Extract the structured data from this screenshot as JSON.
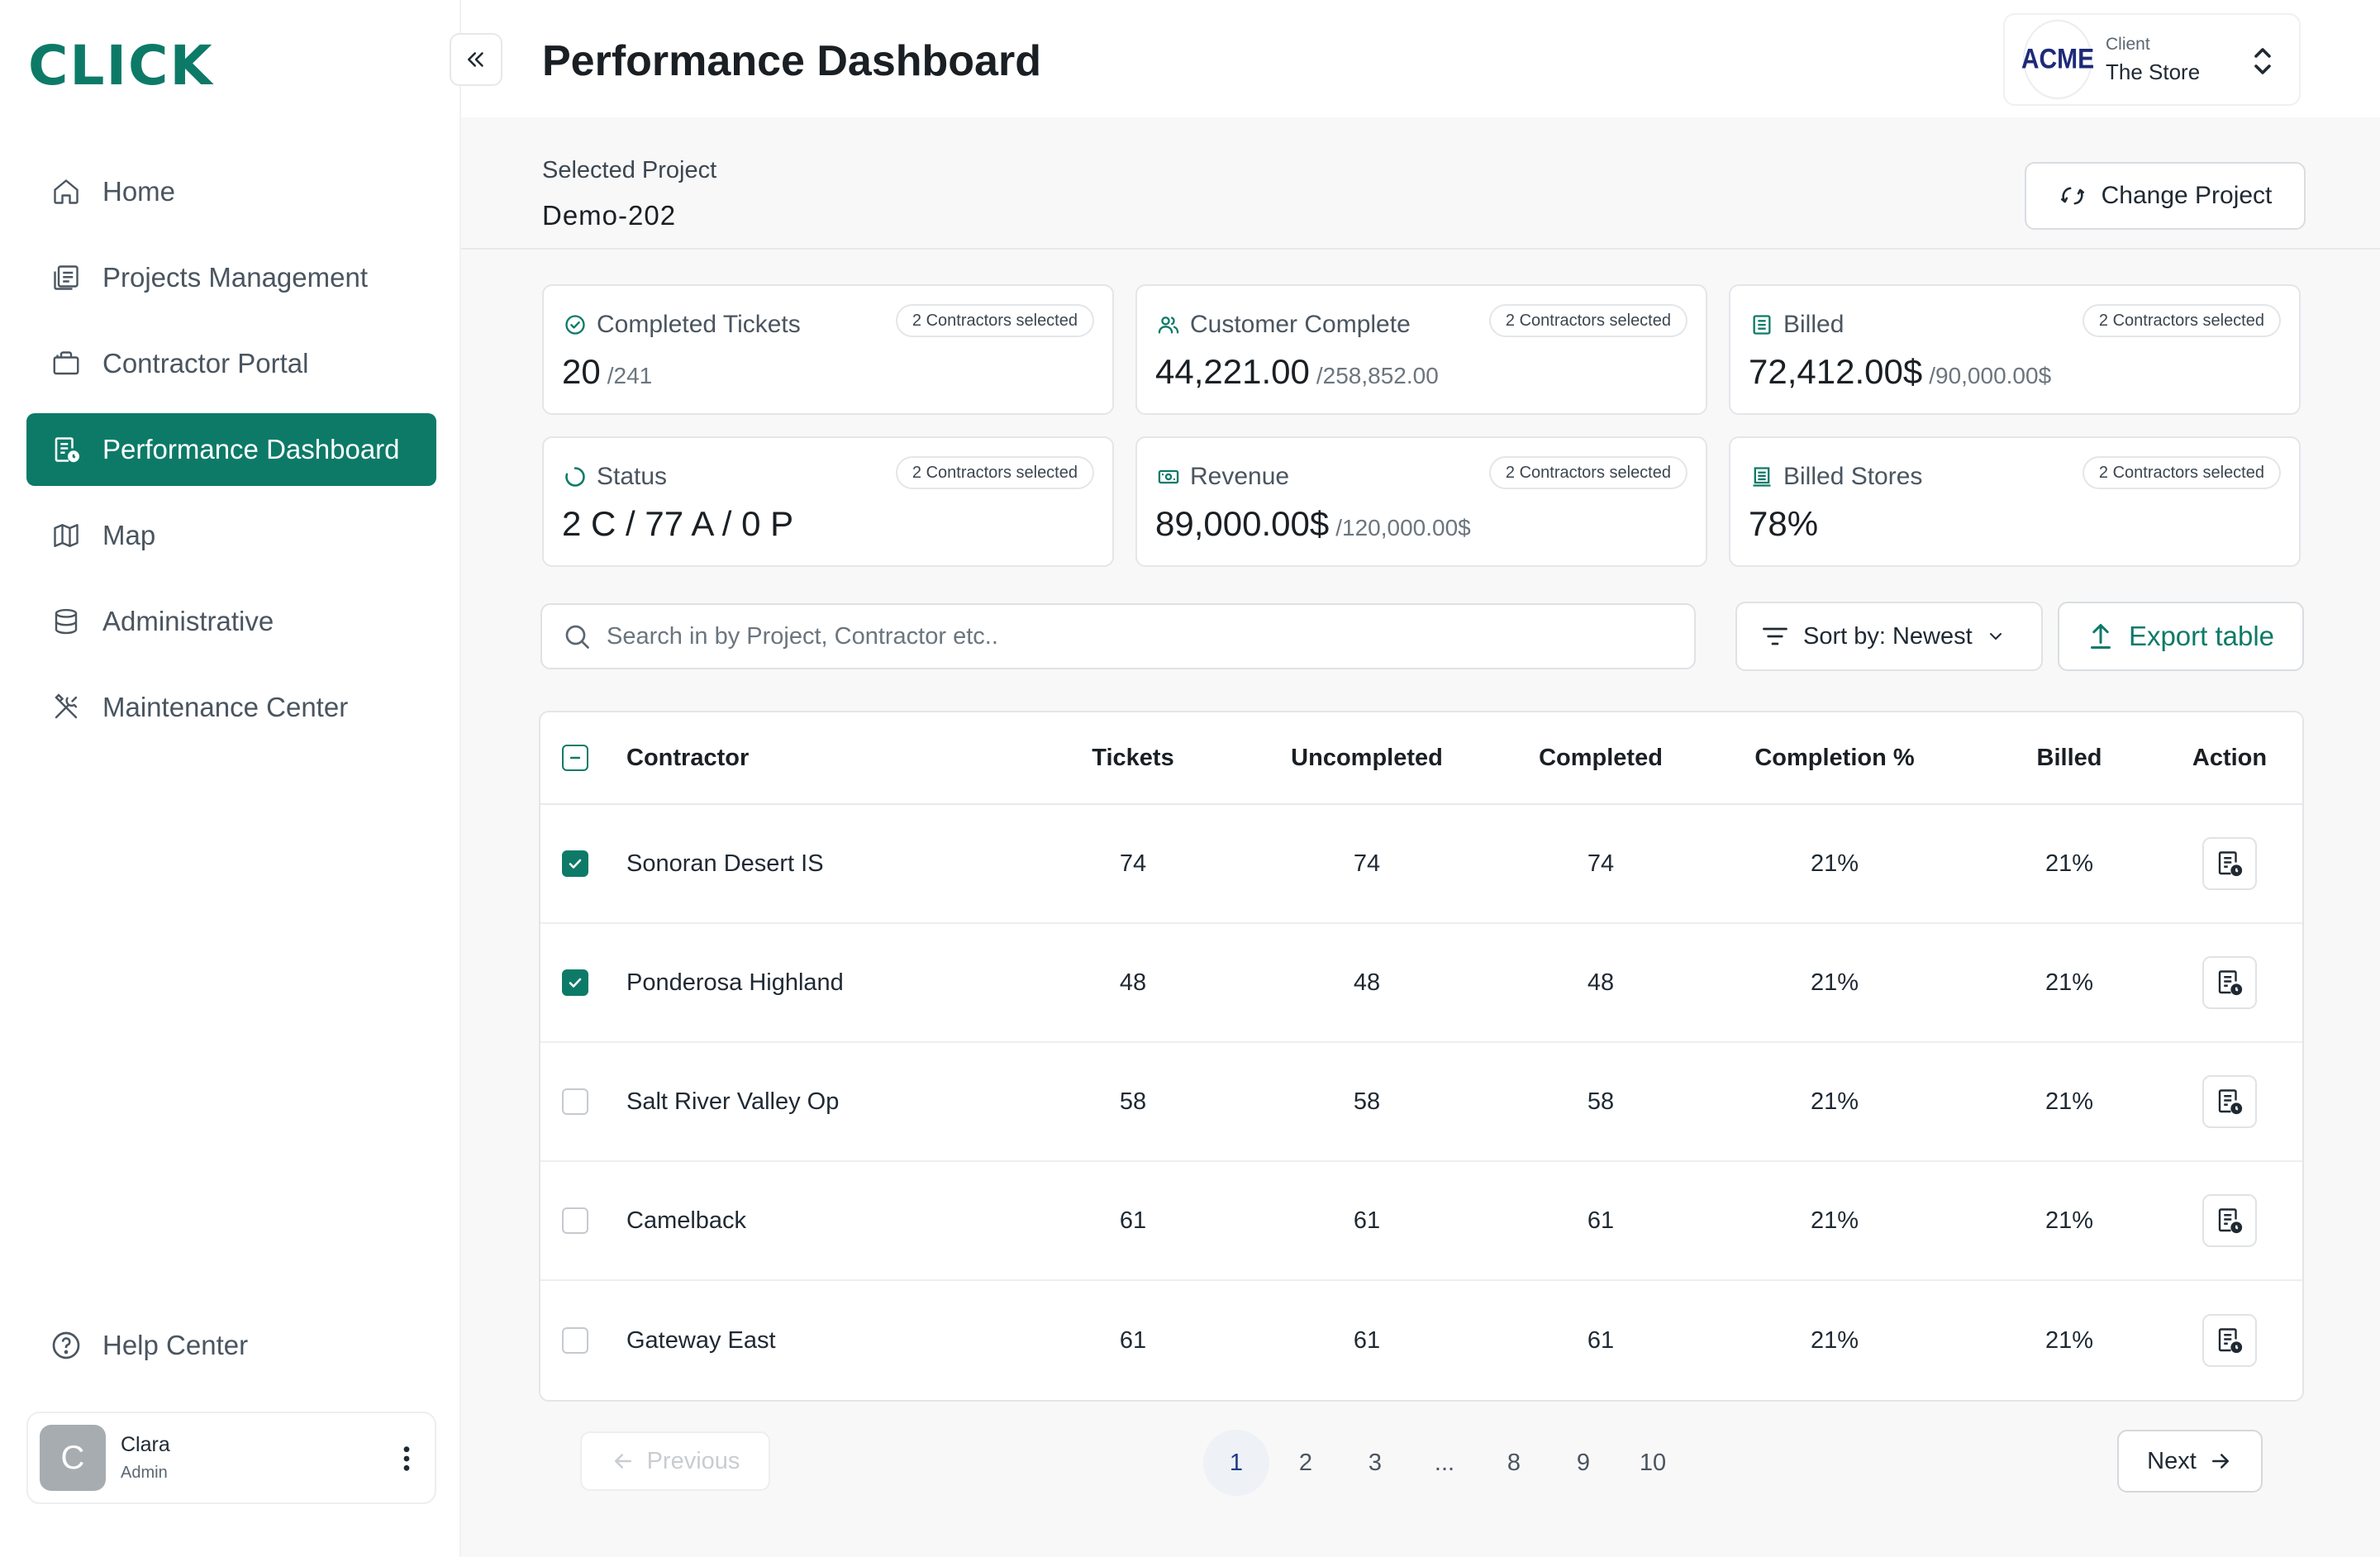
{
  "app": {
    "logo": "CLICK"
  },
  "sidebar": {
    "items": [
      {
        "label": "Home",
        "icon": "home-icon"
      },
      {
        "label": "Projects Management",
        "icon": "projects-icon"
      },
      {
        "label": "Contractor Portal",
        "icon": "briefcase-icon"
      },
      {
        "label": "Performance Dashboard",
        "icon": "dashboard-icon",
        "active": true
      },
      {
        "label": "Map",
        "icon": "map-icon"
      },
      {
        "label": "Administrative",
        "icon": "database-icon"
      },
      {
        "label": "Maintenance Center",
        "icon": "tools-icon"
      }
    ],
    "help": "Help Center",
    "user": {
      "initial": "C",
      "name": "Clara",
      "role": "Admin"
    }
  },
  "header": {
    "title": "Performance Dashboard",
    "client": {
      "logo": "ACME",
      "label": "Client",
      "name": "The Store"
    }
  },
  "project": {
    "label": "Selected Project",
    "name": "Demo-202",
    "change_label": "Change Project"
  },
  "cards": [
    {
      "title": "Completed Tickets",
      "badge": "2 Contractors selected",
      "value": "20",
      "sub": "/241",
      "icon": "check-circle-icon"
    },
    {
      "title": "Customer Complete",
      "badge": "2 Contractors selected",
      "value": "44,221.00",
      "sub": "/258,852.00",
      "icon": "users-icon"
    },
    {
      "title": "Billed",
      "badge": "2 Contractors selected",
      "value": "72,412.00$",
      "sub": "/90,000.00$",
      "icon": "document-icon"
    },
    {
      "title": "Status",
      "badge": "2 Contractors selected",
      "value": "2 C / 77 A / 0 P",
      "sub": "",
      "icon": "loading-icon"
    },
    {
      "title": "Revenue",
      "badge": "2 Contractors selected",
      "value": "89,000.00$",
      "sub": "/120,000.00$",
      "icon": "money-icon"
    },
    {
      "title": "Billed Stores",
      "badge": "2 Contractors selected",
      "value": "78%",
      "sub": "",
      "icon": "store-icon"
    }
  ],
  "toolbar": {
    "search_placeholder": "Search in by Project, Contractor etc..",
    "sort_label": "Sort by: Newest",
    "export_label": "Export table"
  },
  "table": {
    "columns": [
      "Contractor",
      "Tickets",
      "Uncompleted",
      "Completed",
      "Completion %",
      "Billed",
      "Action"
    ],
    "rows": [
      {
        "name": "Sonoran Desert IS",
        "tickets": "74",
        "uncompleted": "74",
        "completed": "74",
        "completion": "21%",
        "billed": "21%",
        "checked": true
      },
      {
        "name": "Ponderosa Highland",
        "tickets": "48",
        "uncompleted": "48",
        "completed": "48",
        "completion": "21%",
        "billed": "21%",
        "checked": true
      },
      {
        "name": "Salt River Valley Op",
        "tickets": "58",
        "uncompleted": "58",
        "completed": "58",
        "completion": "21%",
        "billed": "21%",
        "checked": false
      },
      {
        "name": "Camelback",
        "tickets": "61",
        "uncompleted": "61",
        "completed": "61",
        "completion": "21%",
        "billed": "21%",
        "checked": false
      },
      {
        "name": "Gateway East",
        "tickets": "61",
        "uncompleted": "61",
        "completed": "61",
        "completion": "21%",
        "billed": "21%",
        "checked": false
      }
    ]
  },
  "pagination": {
    "previous": "Previous",
    "next": "Next",
    "pages": [
      "1",
      "2",
      "3",
      "...",
      "8",
      "9",
      "10"
    ],
    "current": "1"
  },
  "colors": {
    "accent": "#0d7a68",
    "acme": "#1e2a78"
  }
}
